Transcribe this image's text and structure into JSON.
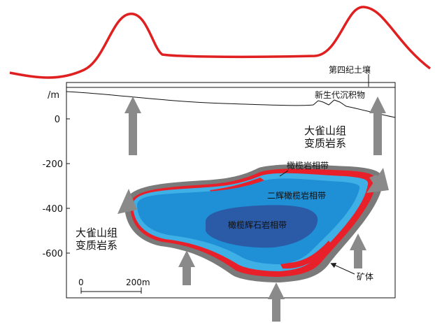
{
  "y_axis": {
    "unit": "/m",
    "ticks": [
      {
        "value": 0,
        "label": "0"
      },
      {
        "value": -200,
        "label": "-200"
      },
      {
        "value": -400,
        "label": "-400"
      },
      {
        "value": -600,
        "label": "-600"
      }
    ]
  },
  "labels": {
    "quaternary_soil": "第四纪土壤",
    "cenozoic_sediment": "新生代沉积物",
    "metamorphic_top_1": "大雀山组",
    "metamorphic_top_2": "变质岩系",
    "metamorphic_left_1": "大雀山组",
    "metamorphic_left_2": "变质岩系",
    "olivine_zone": "橄榄岩相带",
    "pyroxene_zone": "二辉橄榄岩相带",
    "pyroxenite_zone": "橄榄辉石岩相带",
    "ore_body": "矿体"
  },
  "scale_bar": {
    "start": "0",
    "end": "200m"
  },
  "colors": {
    "anomaly_curve": "#e02020",
    "outer_shell": "#7a7a7a",
    "ore_red": "#e8202a",
    "olivine_zone": "#3fb0e6",
    "pyroxene_zone": "#1f8fd6",
    "pyroxenite_zone": "#2b5aa6",
    "arrow": "#8a8a8a"
  }
}
